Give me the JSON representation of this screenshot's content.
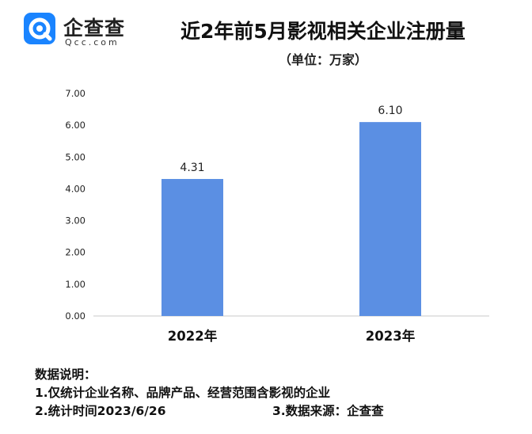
{
  "brand": {
    "name": "企查查",
    "sub": "Qcc.com",
    "color": "#1a84ff"
  },
  "chart_data": {
    "type": "bar",
    "title": "近2年前5月影视相关企业注册量",
    "subtitle": "（单位：万家）",
    "categories": [
      "2022年",
      "2023年"
    ],
    "values": [
      4.31,
      6.1
    ],
    "value_labels": [
      "4.31",
      "6.10"
    ],
    "ylim": [
      0,
      7
    ],
    "yticks": [
      "0.00",
      "1.00",
      "2.00",
      "3.00",
      "4.00",
      "5.00",
      "6.00",
      "7.00"
    ],
    "xlabel": "",
    "ylabel": "",
    "grid": false,
    "legend": "none",
    "bar_color": "#5b8fe3"
  },
  "notes": {
    "heading": "数据说明：",
    "line1": "1.仅统计企业名称、品牌产品、经营范围含影视的企业",
    "line2": "2.统计时间2023/6/26",
    "line3": "3.数据来源：企查查"
  }
}
